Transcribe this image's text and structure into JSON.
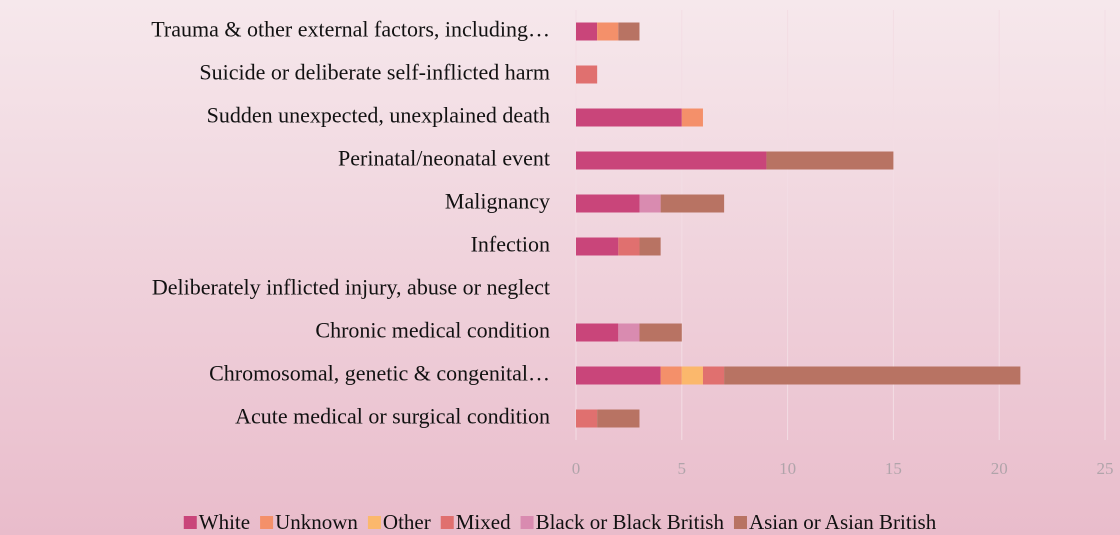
{
  "chart_data": {
    "type": "stacked-barh",
    "categories": [
      "Trauma & other external factors, including…",
      "Suicide or deliberate self-inflicted harm",
      "Sudden unexpected, unexplained death",
      "Perinatal/neonatal event",
      "Malignancy",
      "Infection",
      "Deliberately inflicted injury, abuse or neglect",
      "Chronic medical condition",
      "Chromosomal, genetic & congenital…",
      "Acute medical or surgical condition"
    ],
    "series": [
      {
        "name": "White",
        "color": "#c9457a",
        "values": [
          1,
          0,
          5,
          9,
          3,
          2,
          0,
          2,
          4,
          0
        ]
      },
      {
        "name": "Unknown",
        "color": "#f4906a",
        "values": [
          1,
          0,
          1,
          0,
          0,
          0,
          0,
          0,
          1,
          0
        ]
      },
      {
        "name": "Other",
        "color": "#fbb86c",
        "values": [
          0,
          0,
          0,
          0,
          0,
          0,
          0,
          0,
          1,
          0
        ]
      },
      {
        "name": "Mixed",
        "color": "#e0706f",
        "values": [
          0,
          1,
          0,
          0,
          0,
          1,
          0,
          0,
          1,
          1
        ]
      },
      {
        "name": "Black or Black British",
        "color": "#d98bb0",
        "values": [
          0,
          0,
          0,
          0,
          1,
          0,
          0,
          1,
          0,
          0
        ]
      },
      {
        "name": "Asian or Asian British",
        "color": "#b87363",
        "values": [
          1,
          0,
          0,
          6,
          3,
          1,
          0,
          2,
          14,
          2
        ]
      }
    ],
    "xlim": [
      0,
      25
    ],
    "xticks": [
      0,
      5,
      10,
      15,
      20,
      25
    ],
    "grid": true,
    "legend": "bottom"
  }
}
